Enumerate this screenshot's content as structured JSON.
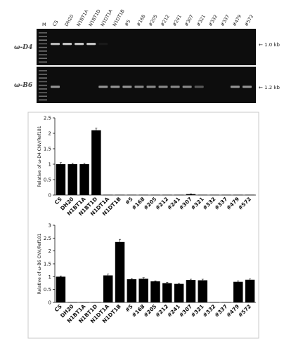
{
  "gel": {
    "marker_label": "M",
    "lanes": [
      "CS",
      "DH20",
      "N1BT1A",
      "N1BT1D",
      "N1DT1A",
      "N1DT1B",
      "#5",
      "#168",
      "#205",
      "#212",
      "#241",
      "#307",
      "#321",
      "#332",
      "#337",
      "#479",
      "#572"
    ],
    "panels": [
      {
        "gene": "ω-D4",
        "size_label": "← 1.0 kb",
        "band_intensity": [
          0.7,
          0.75,
          0.75,
          0.75,
          0.05,
          0,
          0,
          0,
          0,
          0,
          0,
          0,
          0,
          0,
          0,
          0,
          0
        ]
      },
      {
        "gene": "ω-B6",
        "size_label": "← 1.2 kb",
        "band_intensity": [
          0.55,
          0,
          0,
          0,
          0.55,
          0.55,
          0.55,
          0.5,
          0.5,
          0.5,
          0.5,
          0.5,
          0.3,
          0,
          0,
          0.55,
          0.55
        ]
      }
    ]
  },
  "chart_data": [
    {
      "type": "bar",
      "ylabel": "Relative of ω-D4 CNV/Ref181",
      "ylim": [
        0,
        2.5
      ],
      "yticks": [
        "0",
        "0.5",
        "1",
        "1.5",
        "2",
        "2.5"
      ],
      "categories": [
        "CS",
        "DH20",
        "N1BT1A",
        "N1BT1D",
        "N1DT1A",
        "N1DT1B",
        "#5",
        "#168",
        "#205",
        "#212",
        "#241",
        "#307",
        "#321",
        "#332",
        "#337",
        "#479",
        "#572"
      ],
      "values": [
        1.0,
        1.0,
        1.0,
        2.1,
        0.01,
        0.01,
        0.01,
        0.01,
        0.01,
        0.01,
        0.01,
        0.03,
        0.01,
        0.01,
        0.01,
        0.01,
        0.01
      ],
      "errors": [
        0.05,
        0.03,
        0.03,
        0.07,
        0,
        0,
        0,
        0,
        0,
        0,
        0,
        0.01,
        0,
        0,
        0,
        0,
        0
      ]
    },
    {
      "type": "bar",
      "ylabel": "Relative of ω-B6 CNV/Ref181",
      "ylim": [
        0,
        3
      ],
      "yticks": [
        "0",
        "0.5",
        "1",
        "1.5",
        "2",
        "2.5",
        "3"
      ],
      "categories": [
        "CS",
        "DH20",
        "N1BT1A",
        "N1BT1D",
        "N1DT1A",
        "N1DT1B",
        "#5",
        "#168",
        "#205",
        "#212",
        "#241",
        "#307",
        "#321",
        "#332",
        "#337",
        "#479",
        "#572"
      ],
      "values": [
        1.0,
        0.01,
        0.01,
        0.01,
        1.05,
        2.35,
        0.9,
        0.92,
        0.82,
        0.75,
        0.72,
        0.87,
        0.86,
        0.01,
        0.01,
        0.8,
        0.88
      ],
      "errors": [
        0.03,
        0,
        0,
        0,
        0.05,
        0.1,
        0.03,
        0.04,
        0.02,
        0.03,
        0.02,
        0.03,
        0.04,
        0,
        0,
        0.04,
        0.03
      ]
    }
  ]
}
